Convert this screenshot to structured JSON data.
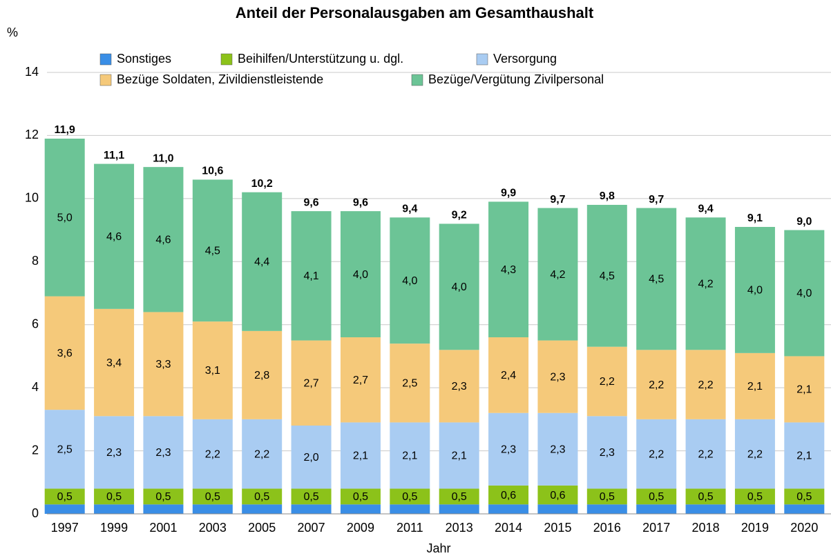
{
  "chart_data": {
    "type": "stacked_bar",
    "title": "Anteil der Personalausgaben am Gesamthaushalt",
    "y_label": "%",
    "x_label": "Jahr",
    "categories": [
      "1997",
      "1999",
      "2001",
      "2003",
      "2005",
      "2007",
      "2009",
      "2011",
      "2013",
      "2014",
      "2015",
      "2016",
      "2017",
      "2018",
      "2019",
      "2020"
    ],
    "series": [
      {
        "name": "Sonstiges",
        "color": "#3a8ee6",
        "values": [
          0.3,
          0.3,
          0.3,
          0.3,
          0.3,
          0.3,
          0.3,
          0.3,
          0.3,
          0.3,
          0.3,
          0.3,
          0.3,
          0.3,
          0.3,
          0.3
        ]
      },
      {
        "name": "Beihilfen/Unterstützung u. dgl.",
        "color": "#8cc21a",
        "values": [
          0.5,
          0.5,
          0.5,
          0.5,
          0.5,
          0.5,
          0.5,
          0.5,
          0.5,
          0.6,
          0.6,
          0.5,
          0.5,
          0.5,
          0.5,
          0.5
        ],
        "value_labels": [
          "0,5",
          "0,5",
          "0,5",
          "0,5",
          "0,5",
          "0,5",
          "0,5",
          "0,5",
          "0,5",
          "0,6",
          "0,6",
          "0,5",
          "0,5",
          "0,5",
          "0,5",
          "0,5"
        ]
      },
      {
        "name": "Versorgung",
        "color": "#a9ccf2",
        "values": [
          2.5,
          2.3,
          2.3,
          2.2,
          2.2,
          2.0,
          2.1,
          2.1,
          2.1,
          2.3,
          2.3,
          2.3,
          2.2,
          2.2,
          2.2,
          2.1
        ],
        "value_labels": [
          "2,5",
          "2,3",
          "2,3",
          "2,2",
          "2,2",
          "2,0",
          "2,1",
          "2,1",
          "2,1",
          "2,3",
          "2,3",
          "2,3",
          "2,2",
          "2,2",
          "2,2",
          "2,1"
        ]
      },
      {
        "name": "Bezüge Soldaten, Zivildienstleistende",
        "color": "#f5c97a",
        "values": [
          3.6,
          3.4,
          3.3,
          3.1,
          2.8,
          2.7,
          2.7,
          2.5,
          2.3,
          2.4,
          2.3,
          2.2,
          2.2,
          2.2,
          2.1,
          2.1
        ],
        "value_labels": [
          "3,6",
          "3,4",
          "3,3",
          "3,1",
          "2,8",
          "2,7",
          "2,7",
          "2,5",
          "2,3",
          "2,4",
          "2,3",
          "2,2",
          "2,2",
          "2,2",
          "2,1",
          "2,1"
        ]
      },
      {
        "name": "Bezüge/Vergütung Zivilpersonal",
        "color": "#6cc496",
        "values": [
          5.0,
          4.6,
          4.6,
          4.5,
          4.4,
          4.1,
          4.0,
          4.0,
          4.0,
          4.3,
          4.2,
          4.5,
          4.5,
          4.2,
          4.0,
          4.0
        ],
        "value_labels": [
          "5,0",
          "4,6",
          "4,6",
          "4,5",
          "4,4",
          "4,1",
          "4,0",
          "4,0",
          "4,0",
          "4,3",
          "4,2",
          "4,5",
          "4,5",
          "4,2",
          "4,0",
          "4,0"
        ]
      }
    ],
    "total_labels": [
      "11,9",
      "11,1",
      "11,0",
      "10,6",
      "10,2",
      "9,6",
      "9,6",
      "9,4",
      "9,2",
      "9,9",
      "9,7",
      "9,8",
      "9,7",
      "9,4",
      "9,1",
      "9,0"
    ],
    "ylim": [
      0,
      14
    ],
    "yticks": [
      0,
      2,
      4,
      6,
      8,
      10,
      12,
      14
    ],
    "grid": true
  }
}
